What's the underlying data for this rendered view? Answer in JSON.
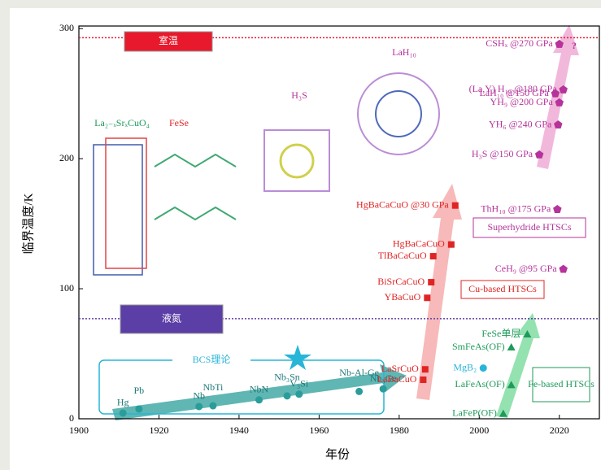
{
  "chart_data": {
    "type": "scatter",
    "x_label": "年份",
    "y_label": "临界温度/K",
    "xlim": [
      1900,
      2030
    ],
    "ylim": [
      0,
      302
    ],
    "xticks": [
      1900,
      1920,
      1940,
      1960,
      1980,
      2000,
      2020
    ],
    "yticks": [
      0,
      100,
      200,
      300
    ],
    "reference_lines": [
      {
        "value": 293,
        "label": "室温",
        "color": "#e8192c"
      },
      {
        "value": 77,
        "label": "液氮",
        "color": "#5b3ea6"
      }
    ],
    "structures": [
      "La₂₋ₓSrₓCuO₄",
      "FeSe",
      "H₃S",
      "LaH₁₀"
    ],
    "annotation": "?",
    "series": [
      {
        "name": "BCS理论",
        "color": "#2a9d9a",
        "marker": "circle",
        "labels": [
          "Hg",
          "Pb",
          "Nb",
          "NbTi",
          "NbN",
          "Nb₃Sn",
          "V₃Si",
          "Nb-Al-Ge",
          "Nb₃Ge"
        ],
        "x": [
          1911,
          1915,
          1930,
          1933.5,
          1945,
          1952,
          1955,
          1970,
          1976
        ],
        "values": [
          4.4,
          7.5,
          9.4,
          10,
          14.5,
          17.6,
          18.9,
          21,
          23
        ]
      },
      {
        "name": "Cu-based HTSCs",
        "color": "#e02424",
        "marker": "square",
        "labels": [
          "LaBaCuO",
          "LaSrCuO",
          "YBaCuO",
          "BiSrCaCuO",
          "TlBaCaCuO",
          "HgBaCaCuO",
          "HgBaCaCuO @30 GPa"
        ],
        "x": [
          1986,
          1986.5,
          1987,
          1988,
          1988.5,
          1993,
          1994
        ],
        "values": [
          30,
          38,
          93,
          105,
          125,
          134,
          164
        ]
      },
      {
        "name": "Fe-based HTSCs",
        "color": "#1f9a5a",
        "marker": "triangle",
        "labels": [
          "LaFeP(OF)",
          "LaFeAs(OF)",
          "SmFeAs(OF)",
          "FeSe单层"
        ],
        "x": [
          2006,
          2008,
          2008,
          2012
        ],
        "values": [
          4,
          26,
          55,
          65
        ]
      },
      {
        "color": "#27b5d8",
        "marker": "circle",
        "labels": [
          "MgB₂"
        ],
        "x": [
          2001
        ],
        "values": [
          39
        ]
      },
      {
        "name": "Superhydride HTSCs",
        "color": "#b5339a",
        "marker": "pentagon",
        "labels": [
          "H₃S @150 GPa",
          "YH₆ @240 GPa",
          "YH₉ @200 GPa",
          "LaH₁₀ @150 GPa",
          "(La,Y) H₁₀ @180 GPa",
          "CSHₓ @270 GPa",
          "ThH₁₀ @175 GPa",
          "CeH₉ @95 GPa"
        ],
        "x": [
          2015,
          2019.7,
          2020,
          2019,
          2021,
          2020,
          2019.5,
          2021
        ],
        "values": [
          203,
          226,
          243,
          250,
          253,
          288,
          161,
          115
        ]
      }
    ]
  }
}
